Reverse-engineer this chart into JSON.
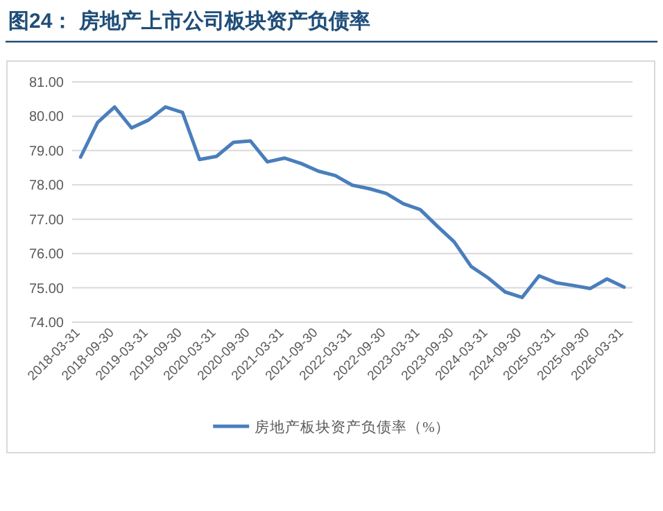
{
  "chart_data": {
    "type": "line",
    "title": "图24：    房地产上市公司板块资产负债率",
    "categories": [
      "2018-03-31",
      null,
      "2018-09-30",
      null,
      "2019-03-31",
      null,
      "2019-09-30",
      null,
      "2020-03-31",
      null,
      "2020-09-30",
      null,
      "2021-03-31",
      null,
      "2021-09-30",
      null,
      "2022-03-31",
      null,
      "2022-09-30",
      null,
      "2023-03-31",
      null,
      "2023-09-30",
      null,
      "2024-03-31",
      null,
      "2024-09-30",
      null,
      "2025-03-31",
      null,
      "2025-09-30",
      null,
      "2026-03-31"
    ],
    "series": [
      {
        "name": "房地产板块资产负债率（%）",
        "color": "#4a7ebb",
        "values": [
          78.81,
          79.82,
          80.27,
          79.66,
          79.89,
          80.27,
          80.11,
          78.74,
          78.83,
          79.24,
          79.28,
          78.67,
          78.78,
          78.62,
          78.4,
          78.27,
          77.99,
          77.89,
          77.75,
          77.45,
          77.28,
          76.8,
          76.34,
          75.62,
          75.29,
          74.88,
          74.72,
          75.35,
          75.15,
          75.07,
          74.98,
          75.26,
          75.02
        ]
      }
    ],
    "ylim": [
      74,
      81
    ],
    "yticks": [
      {
        "value": 74,
        "label": "74.00"
      },
      {
        "value": 75,
        "label": "75.00"
      },
      {
        "value": 76,
        "label": "76.00"
      },
      {
        "value": 77,
        "label": "77.00"
      },
      {
        "value": 78,
        "label": "78.00"
      },
      {
        "value": 79,
        "label": "79.00"
      },
      {
        "value": 80,
        "label": "80.00"
      },
      {
        "value": 81,
        "label": "81.00"
      }
    ],
    "grid": "y",
    "legend": "bottom",
    "marker": "none",
    "line_style": "solid"
  }
}
